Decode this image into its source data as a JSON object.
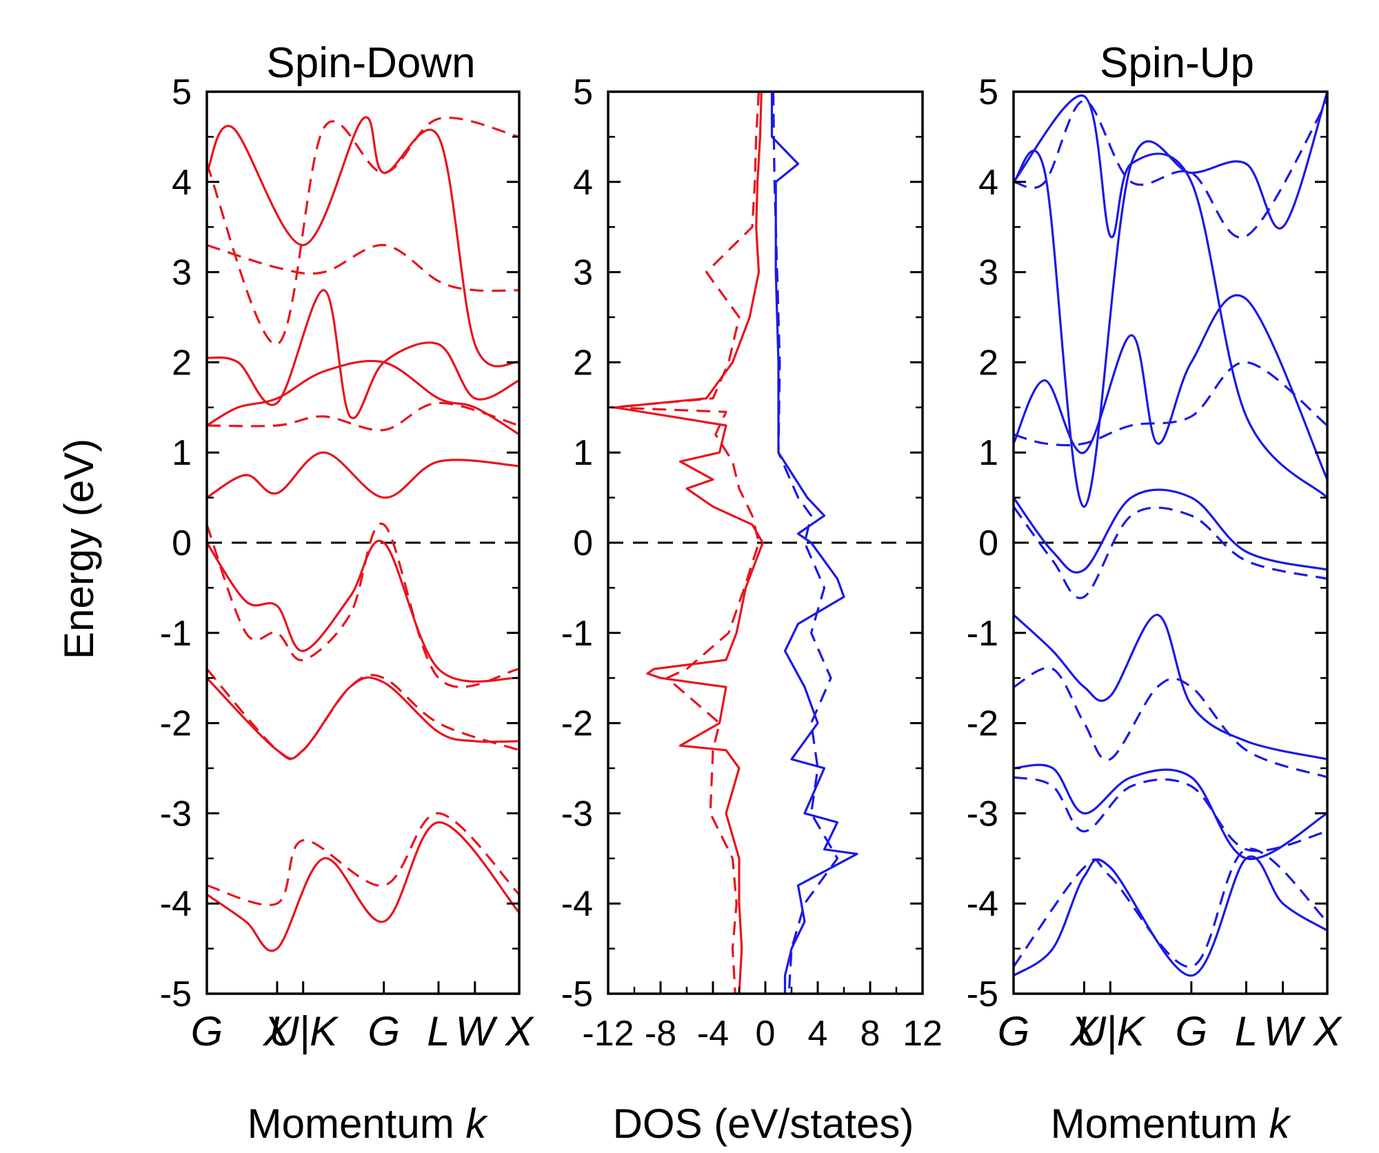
{
  "colors": {
    "spin_down": "#e8141e",
    "spin_up": "#1a1ae6",
    "fermi": "#000000"
  },
  "chart_data": [
    {
      "type": "line",
      "panel": "left",
      "title": "Spin-Down",
      "xlabel_text": "Momentum ",
      "xlabel_symbol": "k",
      "ylabel": "Energy (eV)",
      "ylim": [
        -5,
        5
      ],
      "yticks": [
        5,
        4,
        3,
        2,
        1,
        0,
        -1,
        -2,
        -3,
        -4,
        -5
      ],
      "x_range": [
        0,
        12
      ],
      "kpoint_labels": [
        "G",
        "X",
        "U|K",
        "G",
        "L",
        "W",
        "X"
      ],
      "kpoint_positions": [
        0,
        2.7,
        3.7,
        6.8,
        8.9,
        10.3,
        12
      ],
      "fermi_level": 0,
      "series": [
        {
          "name": "band-1-solid",
          "style": "solid",
          "x": [
            0,
            1.5,
            2.7,
            4.5,
            6.8,
            8.9,
            12
          ],
          "y": [
            -3.9,
            -4.2,
            -4.5,
            -3.5,
            -4.2,
            -3.1,
            -4.1
          ]
        },
        {
          "name": "band-2-solid",
          "style": "solid",
          "x": [
            0,
            2.7,
            3.7,
            5.5,
            6.8,
            8.9,
            10.3,
            12
          ],
          "y": [
            -1.5,
            -2.3,
            -2.3,
            -1.6,
            -1.55,
            -2.1,
            -2.2,
            -2.2
          ]
        },
        {
          "name": "band-3-solid",
          "style": "solid",
          "x": [
            0,
            1.5,
            2.7,
            3.7,
            5.5,
            6.8,
            8.9,
            12
          ],
          "y": [
            0,
            -0.65,
            -0.7,
            -1.2,
            -0.6,
            0,
            -1.4,
            -1.5
          ]
        },
        {
          "name": "band-4-solid",
          "style": "solid",
          "x": [
            0,
            1.5,
            2.7,
            4.5,
            6.8,
            8.9,
            12
          ],
          "y": [
            0.5,
            0.75,
            0.55,
            1.0,
            0.5,
            0.9,
            0.85
          ]
        },
        {
          "name": "band-5-solid",
          "style": "solid",
          "x": [
            0,
            1.2,
            2.7,
            4.5,
            6.8,
            8.9,
            10.3,
            12
          ],
          "y": [
            1.3,
            1.5,
            1.6,
            1.9,
            2.0,
            1.6,
            1.5,
            1.2
          ]
        },
        {
          "name": "band-6-solid",
          "style": "solid",
          "x": [
            0,
            1.2,
            2.7,
            4.5,
            5.5,
            6.8,
            8.9,
            10.3,
            12
          ],
          "y": [
            2.05,
            2.0,
            1.55,
            2.8,
            1.4,
            2.0,
            2.2,
            1.6,
            1.8
          ]
        },
        {
          "name": "band-7-solid",
          "style": "solid",
          "x": [
            0,
            1.0,
            3.7,
            6.0,
            6.8,
            8.9,
            10.3,
            12
          ],
          "y": [
            4.1,
            4.6,
            3.3,
            4.7,
            4.1,
            4.5,
            2.2,
            2.0
          ]
        },
        {
          "name": "band-1-dashed",
          "style": "dashed",
          "x": [
            0,
            2.7,
            3.7,
            6.8,
            8.9,
            12
          ],
          "y": [
            -3.8,
            -4.0,
            -3.3,
            -3.8,
            -3.0,
            -3.9
          ]
        },
        {
          "name": "band-2-dashed",
          "style": "dashed",
          "x": [
            0,
            2.7,
            3.7,
            5.5,
            6.8,
            8.9,
            12
          ],
          "y": [
            -1.4,
            -2.3,
            -2.3,
            -1.6,
            -1.5,
            -2.0,
            -2.3
          ]
        },
        {
          "name": "band-3-dashed",
          "style": "dashed",
          "x": [
            0,
            1.5,
            2.7,
            3.7,
            5.5,
            6.8,
            8.9,
            12
          ],
          "y": [
            0.2,
            -1.0,
            -1.0,
            -1.3,
            -0.8,
            0.2,
            -1.5,
            -1.4
          ]
        },
        {
          "name": "band-4-dashed",
          "style": "dashed",
          "x": [
            0,
            2.7,
            4.5,
            6.8,
            8.9,
            12
          ],
          "y": [
            1.3,
            1.3,
            1.4,
            1.25,
            1.55,
            1.3
          ]
        },
        {
          "name": "band-5-dashed",
          "style": "dashed",
          "x": [
            0,
            2.7,
            4.5,
            6.8,
            8.9,
            10.3,
            12
          ],
          "y": [
            3.3,
            3.05,
            3.0,
            3.3,
            2.9,
            2.8,
            2.8
          ]
        },
        {
          "name": "band-6-dashed",
          "style": "dashed",
          "x": [
            0,
            2.7,
            4.5,
            6.8,
            8.9,
            12
          ],
          "y": [
            4.2,
            2.2,
            4.6,
            4.1,
            4.7,
            4.5
          ]
        }
      ]
    },
    {
      "type": "line",
      "panel": "center",
      "xlabel": "DOS (eV/states)",
      "ylim": [
        -5,
        5
      ],
      "yticks": [
        5,
        4,
        3,
        2,
        1,
        0,
        -1,
        -2,
        -3,
        -4,
        -5
      ],
      "xlim": [
        -12,
        12
      ],
      "xticks": [
        -12,
        -8,
        -4,
        0,
        4,
        8,
        12
      ],
      "xtick_labels": [
        "-12",
        "-8",
        "-4",
        "0",
        "4",
        "8",
        "12"
      ],
      "fermi_level": 0,
      "series": [
        {
          "name": "dos-spin-down-solid",
          "style": "solid",
          "color_key": "spin_down",
          "energy": [
            5,
            4.5,
            4.0,
            3.5,
            3.0,
            2.5,
            2.0,
            1.6,
            1.5,
            1.3,
            1.0,
            0.9,
            0.7,
            0.6,
            0.4,
            0.2,
            0,
            -0.5,
            -1.0,
            -1.3,
            -1.4,
            -1.45,
            -1.5,
            -1.6,
            -2.0,
            -2.25,
            -2.3,
            -2.5,
            -3.0,
            -3.5,
            -4.0,
            -4.5,
            -5
          ],
          "dos": [
            -0.3,
            -0.4,
            -0.6,
            -0.7,
            -0.5,
            -1.2,
            -2.5,
            -4.5,
            -11.5,
            -3.0,
            -3.5,
            -6.5,
            -4.0,
            -6.0,
            -4.0,
            -1.0,
            -0.2,
            -1.5,
            -2.2,
            -3.0,
            -8.5,
            -9.0,
            -8.0,
            -3.0,
            -3.5,
            -6.5,
            -3.0,
            -2.0,
            -3.0,
            -2.0,
            -2.0,
            -1.8,
            -2.0
          ]
        },
        {
          "name": "dos-spin-down-dashed",
          "style": "dashed",
          "color_key": "spin_down",
          "energy": [
            5,
            4.5,
            4.0,
            3.5,
            3.0,
            2.5,
            2.0,
            1.6,
            1.5,
            1.45,
            1.2,
            0.9,
            0.6,
            0.3,
            0,
            -0.5,
            -1.0,
            -1.4,
            -1.5,
            -2.0,
            -2.3,
            -3.0,
            -3.5,
            -4.0,
            -4.5,
            -5
          ],
          "dos": [
            -0.5,
            -0.7,
            -0.8,
            -1.0,
            -4.5,
            -2.0,
            -2.8,
            -4.0,
            -11.8,
            -3.0,
            -3.8,
            -2.5,
            -2.0,
            -1.0,
            -0.5,
            -1.6,
            -2.8,
            -6.0,
            -7.5,
            -3.5,
            -4.0,
            -4.2,
            -2.5,
            -2.2,
            -2.5,
            -2.3
          ]
        },
        {
          "name": "dos-spin-up-solid",
          "style": "solid",
          "color_key": "spin_up",
          "energy": [
            5,
            4.5,
            4.2,
            4.0,
            3.0,
            2.0,
            1.0,
            0.5,
            0.3,
            0.1,
            0,
            -0.4,
            -0.6,
            -0.9,
            -1.2,
            -1.6,
            -2.0,
            -2.4,
            -2.5,
            -3.0,
            -3.1,
            -3.4,
            -3.45,
            -3.8,
            -4.2,
            -4.5,
            -4.8,
            -5
          ],
          "dos": [
            0.5,
            0.5,
            2.5,
            0.8,
            0.8,
            1.0,
            1.0,
            3.2,
            4.5,
            2.5,
            3.5,
            5.5,
            6.0,
            2.5,
            1.5,
            3.0,
            4.0,
            2.0,
            4.5,
            3.0,
            5.5,
            4.5,
            7.0,
            2.5,
            3.0,
            2.0,
            1.5,
            1.5
          ]
        },
        {
          "name": "dos-spin-up-dashed",
          "style": "dashed",
          "color_key": "spin_up",
          "energy": [
            5,
            4.0,
            3.0,
            2.0,
            1.0,
            0.5,
            0.3,
            0,
            -0.5,
            -1.0,
            -1.5,
            -2.0,
            -2.5,
            -3.0,
            -3.5,
            -4.0,
            -4.5,
            -5
          ],
          "dos": [
            0.6,
            0.7,
            0.9,
            1.1,
            1.0,
            2.5,
            3.5,
            3.0,
            4.5,
            3.5,
            5.0,
            3.5,
            4.0,
            3.5,
            5.5,
            3.0,
            2.0,
            1.8
          ]
        }
      ]
    },
    {
      "type": "line",
      "panel": "right",
      "title": "Spin-Up",
      "xlabel_text": "Momentum ",
      "xlabel_symbol": "k",
      "ylim": [
        -5,
        5
      ],
      "yticks": [
        5,
        4,
        3,
        2,
        1,
        0,
        -1,
        -2,
        -3,
        -4,
        -5
      ],
      "x_range": [
        0,
        12
      ],
      "kpoint_labels": [
        "G",
        "X",
        "U|K",
        "G",
        "L",
        "W",
        "X"
      ],
      "kpoint_positions": [
        0,
        2.7,
        3.7,
        6.8,
        8.9,
        10.3,
        12
      ],
      "fermi_level": 0,
      "series": [
        {
          "name": "band-1-solid",
          "style": "solid",
          "x": [
            0,
            1.5,
            2.7,
            3.7,
            6.8,
            8.9,
            10.3,
            12
          ],
          "y": [
            -4.8,
            -4.5,
            -3.7,
            -3.6,
            -4.8,
            -3.5,
            -4.0,
            -4.3
          ]
        },
        {
          "name": "band-2-solid",
          "style": "solid",
          "x": [
            0,
            1.5,
            2.7,
            4.5,
            6.8,
            8.9,
            12
          ],
          "y": [
            -2.5,
            -2.5,
            -3.0,
            -2.6,
            -2.6,
            -3.5,
            -3.0
          ]
        },
        {
          "name": "band-3-solid",
          "style": "solid",
          "x": [
            0,
            1.5,
            2.7,
            3.7,
            5.5,
            6.8,
            8.9,
            12
          ],
          "y": [
            -0.8,
            -1.2,
            -1.6,
            -1.7,
            -0.8,
            -1.8,
            -2.2,
            -2.4
          ]
        },
        {
          "name": "band-4-solid",
          "style": "solid",
          "x": [
            0,
            1.5,
            2.7,
            4.5,
            6.8,
            8.9,
            12
          ],
          "y": [
            0.5,
            -0.1,
            -0.3,
            0.5,
            0.5,
            -0.1,
            -0.3
          ]
        },
        {
          "name": "band-5-solid",
          "style": "solid",
          "x": [
            0,
            1.2,
            2.7,
            4.5,
            5.5,
            6.8,
            8.9,
            12
          ],
          "y": [
            1.1,
            1.8,
            1.0,
            2.3,
            1.1,
            2.0,
            2.7,
            0.7
          ]
        },
        {
          "name": "band-6-solid",
          "style": "solid",
          "x": [
            0,
            1.2,
            2.7,
            4.5,
            6.8,
            8.9,
            10.3,
            12
          ],
          "y": [
            4.0,
            4.1,
            0.4,
            4.2,
            4.1,
            4.2,
            3.5,
            5.0
          ]
        },
        {
          "name": "band-7-solid",
          "style": "solid",
          "x": [
            0,
            2.7,
            3.7,
            4.5,
            6.8,
            8.9,
            12
          ],
          "y": [
            4.0,
            4.95,
            3.4,
            4.2,
            4.0,
            1.4,
            0.5
          ]
        },
        {
          "name": "band-1-dashed",
          "style": "dashed",
          "x": [
            0,
            2.7,
            3.7,
            6.8,
            8.9,
            12
          ],
          "y": [
            -4.7,
            -3.6,
            -3.7,
            -4.7,
            -3.4,
            -4.2
          ]
        },
        {
          "name": "band-2-dashed",
          "style": "dashed",
          "x": [
            0,
            1.5,
            2.7,
            4.5,
            6.8,
            8.9,
            12
          ],
          "y": [
            -2.6,
            -2.7,
            -3.2,
            -2.7,
            -2.7,
            -3.4,
            -3.2
          ]
        },
        {
          "name": "band-3-dashed",
          "style": "dashed",
          "x": [
            0,
            1.5,
            2.7,
            3.7,
            5.5,
            6.8,
            8.9,
            12
          ],
          "y": [
            -1.6,
            -1.4,
            -2.0,
            -2.4,
            -1.6,
            -1.6,
            -2.3,
            -2.6
          ]
        },
        {
          "name": "band-4-dashed",
          "style": "dashed",
          "x": [
            0,
            1.5,
            2.7,
            4.5,
            6.8,
            8.9,
            12
          ],
          "y": [
            0.4,
            -0.2,
            -0.6,
            0.3,
            0.3,
            -0.2,
            -0.4
          ]
        },
        {
          "name": "band-5-dashed",
          "style": "dashed",
          "x": [
            0,
            1.2,
            2.7,
            4.5,
            6.8,
            8.9,
            12
          ],
          "y": [
            1.2,
            1.1,
            1.1,
            1.3,
            1.4,
            2.0,
            1.3
          ]
        },
        {
          "name": "band-6-dashed",
          "style": "dashed",
          "x": [
            0,
            1.2,
            2.7,
            4.5,
            6.8,
            8.9,
            12
          ],
          "y": [
            4.0,
            4.0,
            4.9,
            4.0,
            4.1,
            3.4,
            4.9
          ]
        }
      ]
    }
  ]
}
